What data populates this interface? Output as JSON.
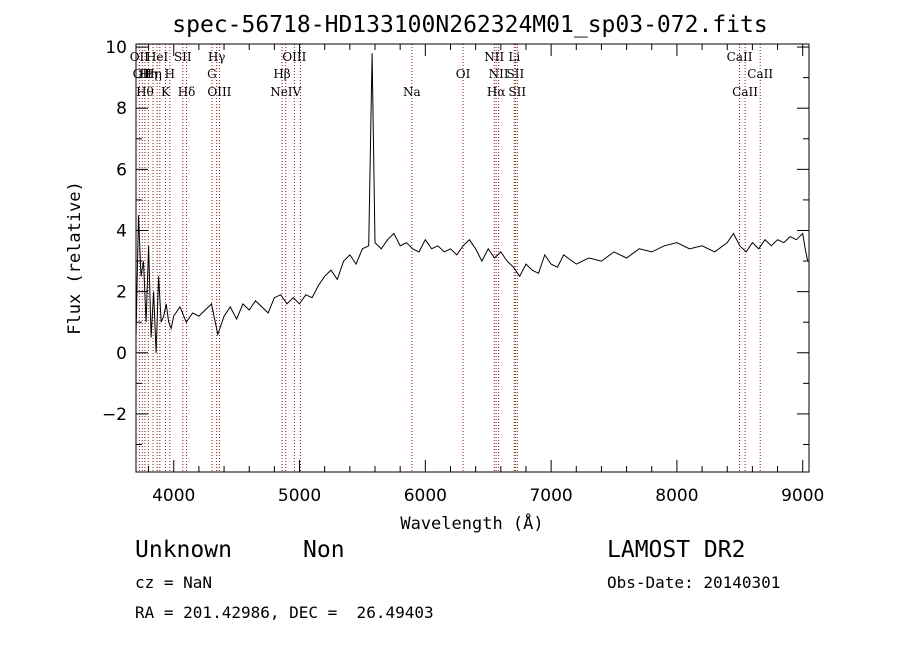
{
  "chart_data": {
    "type": "line",
    "title": "spec-56718-HD133100N262324M01_sp03-072.fits",
    "xlabel": "Wavelength (Å)",
    "ylabel": "Flux (relative)",
    "xlim": [
      3700,
      9050
    ],
    "ylim": [
      -3.9,
      10.1
    ],
    "xticks": [
      4000,
      5000,
      6000,
      7000,
      8000,
      9000
    ],
    "yticks": [
      -2,
      0,
      2,
      4,
      6,
      8,
      10
    ],
    "grid": false,
    "line_color": "#000000",
    "marker_color": "#8b1a1a",
    "series": [
      {
        "x": [
          3700,
          3720,
          3740,
          3760,
          3780,
          3800,
          3820,
          3840,
          3860,
          3880,
          3900,
          3920,
          3940,
          3960,
          3980,
          4000,
          4050,
          4100,
          4150,
          4200,
          4250,
          4300,
          4350,
          4400,
          4450,
          4500,
          4550,
          4600,
          4650,
          4700,
          4750,
          4800,
          4850,
          4900,
          4950,
          5000,
          5050,
          5100,
          5150,
          5200,
          5250,
          5300,
          5350,
          5400,
          5450,
          5500,
          5550,
          5577,
          5600,
          5650,
          5700,
          5750,
          5800,
          5850,
          5900,
          5950,
          6000,
          6050,
          6100,
          6150,
          6200,
          6250,
          6300,
          6350,
          6400,
          6450,
          6500,
          6550,
          6600,
          6650,
          6700,
          6750,
          6800,
          6850,
          6900,
          6950,
          7000,
          7050,
          7100,
          7200,
          7300,
          7400,
          7500,
          7600,
          7700,
          7800,
          7900,
          8000,
          8100,
          8200,
          8300,
          8400,
          8450,
          8500,
          8550,
          8600,
          8650,
          8700,
          8750,
          8800,
          8850,
          8900,
          8950,
          9000,
          9020,
          9040
        ],
        "y": [
          0.5,
          4.5,
          2.5,
          3.0,
          1.0,
          3.5,
          0.5,
          2.0,
          0.0,
          2.5,
          1.0,
          1.2,
          1.6,
          1.0,
          0.8,
          1.2,
          1.5,
          1.0,
          1.3,
          1.2,
          1.4,
          1.6,
          0.6,
          1.2,
          1.5,
          1.1,
          1.6,
          1.4,
          1.7,
          1.5,
          1.3,
          1.8,
          1.9,
          1.6,
          1.8,
          1.6,
          1.9,
          1.8,
          2.2,
          2.5,
          2.7,
          2.4,
          3.0,
          3.2,
          2.9,
          3.4,
          3.5,
          9.8,
          3.6,
          3.4,
          3.7,
          3.9,
          3.5,
          3.6,
          3.4,
          3.3,
          3.7,
          3.4,
          3.5,
          3.3,
          3.4,
          3.2,
          3.5,
          3.7,
          3.4,
          3.0,
          3.4,
          3.1,
          3.3,
          3.0,
          2.8,
          2.5,
          2.9,
          2.7,
          2.6,
          3.2,
          2.9,
          2.8,
          3.2,
          2.9,
          3.1,
          3.0,
          3.3,
          3.1,
          3.4,
          3.3,
          3.5,
          3.6,
          3.4,
          3.5,
          3.3,
          3.6,
          3.9,
          3.5,
          3.3,
          3.6,
          3.4,
          3.7,
          3.5,
          3.7,
          3.6,
          3.8,
          3.7,
          3.9,
          3.4,
          3.0
        ]
      }
    ],
    "lines": [
      {
        "wave": 3727,
        "label": "OII",
        "row": 1
      },
      {
        "wave": 3750,
        "label": "OII",
        "row": 2
      },
      {
        "wave": 3771,
        "label": "Hθ",
        "row": 3
      },
      {
        "wave": 3798,
        "label": "Hη",
        "row": 2
      },
      {
        "wave": 3835,
        "label": "Hη",
        "row": 2
      },
      {
        "wave": 3868,
        "label": "HeI",
        "row": 1
      },
      {
        "wave": 3889,
        "label": "",
        "row": 0
      },
      {
        "wave": 3934,
        "label": "K",
        "row": 3
      },
      {
        "wave": 3969,
        "label": "H",
        "row": 2
      },
      {
        "wave": 4072,
        "label": "SII",
        "row": 1
      },
      {
        "wave": 4102,
        "label": "Hδ",
        "row": 3
      },
      {
        "wave": 4304,
        "label": "G",
        "row": 2
      },
      {
        "wave": 4341,
        "label": "Hγ",
        "row": 1
      },
      {
        "wave": 4363,
        "label": "OIII",
        "row": 3
      },
      {
        "wave": 4861,
        "label": "Hβ",
        "row": 2
      },
      {
        "wave": 4890,
        "label": "NeIV",
        "row": 3
      },
      {
        "wave": 4959,
        "label": "OIII",
        "row": 1
      },
      {
        "wave": 5007,
        "label": "",
        "row": 0
      },
      {
        "wave": 5893,
        "label": "Na",
        "row": 3
      },
      {
        "wave": 6300,
        "label": "OI",
        "row": 2
      },
      {
        "wave": 6548,
        "label": "NII",
        "row": 1
      },
      {
        "wave": 6563,
        "label": "Hα",
        "row": 3
      },
      {
        "wave": 6583,
        "label": "NII",
        "row": 2
      },
      {
        "wave": 6707,
        "label": "Li",
        "row": 1
      },
      {
        "wave": 6716,
        "label": "SII",
        "row": 2
      },
      {
        "wave": 6731,
        "label": "SII",
        "row": 3
      },
      {
        "wave": 8498,
        "label": "CaII",
        "row": 1
      },
      {
        "wave": 8542,
        "label": "CaII",
        "row": 3
      },
      {
        "wave": 8662,
        "label": "CaII",
        "row": 2
      }
    ]
  },
  "info": {
    "object_class": "Unknown",
    "subclass": "Non",
    "survey": "LAMOST DR2",
    "redshift": "cz = NaN",
    "obs_date": "Obs-Date: 20140301",
    "coords": "RA = 201.42986, DEC =  26.49403"
  }
}
